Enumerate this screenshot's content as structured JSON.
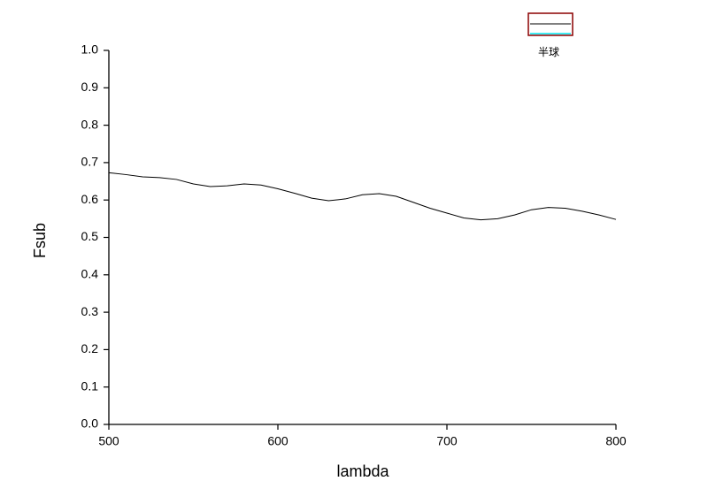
{
  "chart_data": {
    "type": "line",
    "x_label": "lambda",
    "y_label": "Fsub",
    "x": [
      500,
      510,
      520,
      530,
      540,
      550,
      560,
      570,
      580,
      590,
      600,
      610,
      620,
      630,
      640,
      650,
      660,
      670,
      680,
      690,
      700,
      710,
      720,
      730,
      740,
      750,
      760,
      770,
      780,
      790,
      800
    ],
    "series": [
      {
        "name": "半球",
        "color": "#000000",
        "values": [
          0.673,
          0.668,
          0.662,
          0.66,
          0.655,
          0.643,
          0.636,
          0.638,
          0.643,
          0.64,
          0.63,
          0.618,
          0.605,
          0.598,
          0.603,
          0.614,
          0.617,
          0.61,
          0.594,
          0.578,
          0.565,
          0.552,
          0.547,
          0.55,
          0.56,
          0.574,
          0.58,
          0.578,
          0.57,
          0.56,
          0.548
        ]
      }
    ],
    "xlim": [
      500,
      800
    ],
    "xticks": [
      500,
      600,
      700,
      800
    ],
    "ylim": [
      0,
      1
    ],
    "yticks": [
      {
        "value": 0,
        "label": "0.0"
      },
      0.1,
      0.2,
      0.3,
      0.4,
      0.5,
      0.6,
      0.7,
      0.8,
      0.9,
      {
        "value": 1,
        "label": "1.0"
      }
    ],
    "legend": "top",
    "grid": false
  }
}
